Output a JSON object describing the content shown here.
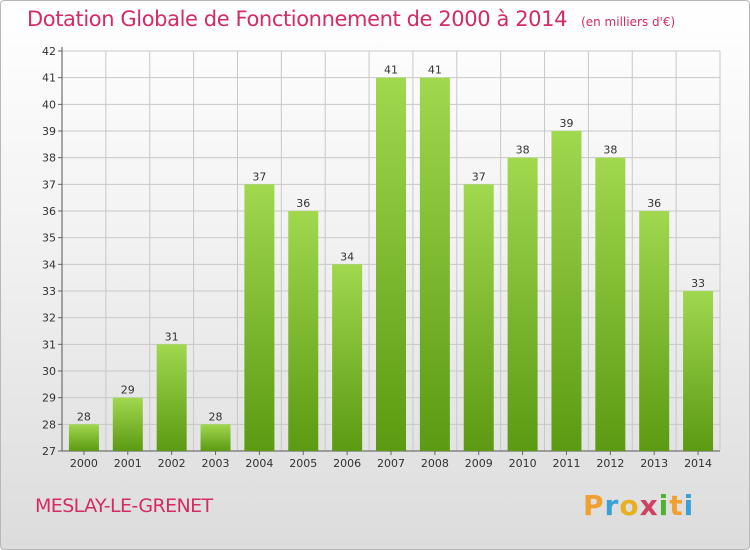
{
  "chart_data": {
    "type": "bar",
    "title": "Dotation Globale de Fonctionnement de 2000 à 2014",
    "subtitle": "(en milliers d'€)",
    "categories": [
      "2000",
      "2001",
      "2002",
      "2003",
      "2004",
      "2005",
      "2006",
      "2007",
      "2008",
      "2009",
      "2010",
      "2011",
      "2012",
      "2013",
      "2014"
    ],
    "values": [
      28,
      29,
      31,
      28,
      37,
      36,
      34,
      41,
      41,
      37,
      38,
      39,
      38,
      36,
      33
    ],
    "ylim": [
      27,
      42
    ],
    "yticks": [
      27,
      28,
      29,
      30,
      31,
      32,
      33,
      34,
      35,
      36,
      37,
      38,
      39,
      40,
      41,
      42
    ],
    "grid": true,
    "bar_color_top": "#a0d84e",
    "bar_color_bottom": "#5b9a12"
  },
  "footer": {
    "commune": "MESLAY-LE-GRENET",
    "brand": "Proxiti",
    "brand_colors": [
      "#f0a030",
      "#3aa0d8",
      "#e8b020",
      "#d04060",
      "#50b030",
      "#f0a030",
      "#3aa0d8"
    ]
  },
  "colors": {
    "title": "#d42b66",
    "grid": "#c8c8c8"
  }
}
